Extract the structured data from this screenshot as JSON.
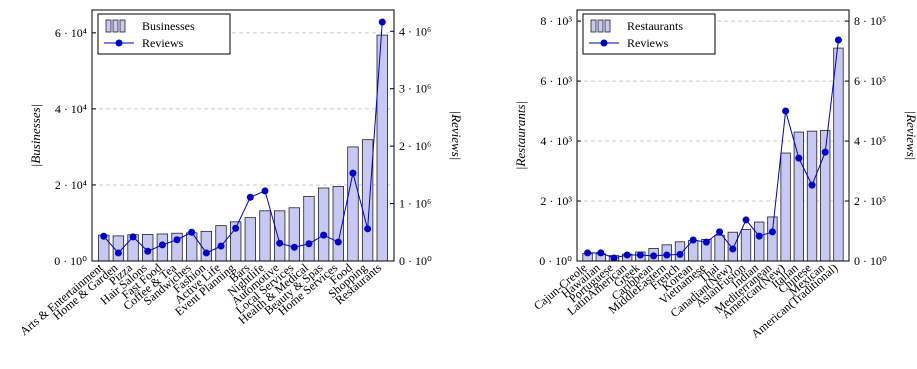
{
  "chart_data": [
    {
      "type": "bar-line",
      "y_label": "|Businesses|",
      "y2_label": "|Reviews|",
      "categories": [
        "Arts & Entertainment",
        "Home & Garden",
        "Pizza",
        "Hair Salons",
        "Fast Food",
        "Coffee & Tea",
        "Sandwiches",
        "Fashion",
        "Active Life",
        "Event Planning",
        "Bars",
        "Nightlife",
        "Automotive",
        "Local Services",
        "Health & Medical",
        "Beauty & Spas",
        "Home Services",
        "Food",
        "Shopping",
        "Restaurants"
      ],
      "series": [
        {
          "name": "Businesses",
          "color": "#c8c8f5",
          "values": [
            6800,
            6600,
            6900,
            7000,
            7100,
            7300,
            7400,
            7800,
            9300,
            10300,
            11400,
            13200,
            13200,
            14000,
            17000,
            19200,
            19600,
            30000,
            31900,
            59400
          ]
        },
        {
          "name": "Reviews",
          "color": "#0000cc",
          "axis": "y2",
          "values": [
            430000,
            140000,
            420000,
            170000,
            280000,
            370000,
            500000,
            140000,
            260000,
            570000,
            1110000,
            1220000,
            310000,
            240000,
            300000,
            450000,
            330000,
            1530000,
            560000,
            4160000
          ]
        }
      ],
      "ylim": [
        0,
        66000
      ],
      "yticks": [
        {
          "value": 0,
          "label": "0 · 10⁰"
        },
        {
          "value": 20000,
          "label": "2 · 10⁴"
        },
        {
          "value": 40000,
          "label": "4 · 10⁴"
        },
        {
          "value": 60000,
          "label": "6 · 10⁴"
        }
      ],
      "y2lim": [
        0,
        4370000
      ],
      "y2ticks": [
        {
          "value": 0,
          "label": "0 · 10⁰"
        },
        {
          "value": 1000000,
          "label": "1 · 10⁶"
        },
        {
          "value": 2000000,
          "label": "2 · 10⁶"
        },
        {
          "value": 3000000,
          "label": "3 · 10⁶"
        },
        {
          "value": 4000000,
          "label": "4 · 10⁶"
        }
      ],
      "grid": true,
      "legend": "upper-left"
    },
    {
      "type": "bar-line",
      "y_label": "|Restaurants|",
      "y2_label": "|Reviews|",
      "categories": [
        "Cajun-Creole",
        "Hawaiian",
        "Portuguese",
        "LatinAmerican",
        "Greek",
        "Caribbean",
        "MiddleEastern",
        "French",
        "Korean",
        "Vietnamese",
        "Thai",
        "Canadian(New)",
        "AsianFusion",
        "Indian",
        "Mediterranean",
        "American(New)",
        "Italian",
        "Chinese",
        "Mexican",
        "American(Traditional)"
      ],
      "series": [
        {
          "name": "Restaurants",
          "color": "#c8c8f5",
          "values": [
            250,
            240,
            180,
            230,
            300,
            420,
            540,
            640,
            680,
            720,
            860,
            960,
            1050,
            1300,
            1470,
            3600,
            4300,
            4330,
            4350,
            7100
          ]
        },
        {
          "name": "Reviews",
          "color": "#0000cc",
          "axis": "y2",
          "values": [
            27000,
            27000,
            10000,
            20000,
            20000,
            17000,
            20000,
            22000,
            70000,
            63000,
            97000,
            40000,
            137000,
            83000,
            97000,
            500000,
            343000,
            253000,
            363000,
            737000
          ]
        }
      ],
      "ylim": [
        0,
        8370
      ],
      "yticks": [
        {
          "value": 0,
          "label": "0 · 10⁰"
        },
        {
          "value": 2000,
          "label": "2 · 10³"
        },
        {
          "value": 4000,
          "label": "4 · 10³"
        },
        {
          "value": 6000,
          "label": "6 · 10³"
        },
        {
          "value": 8000,
          "label": "8 · 10³"
        }
      ],
      "y2lim": [
        0,
        837000
      ],
      "y2ticks": [
        {
          "value": 0,
          "label": "0 · 10⁰"
        },
        {
          "value": 200000,
          "label": "2 · 10⁵"
        },
        {
          "value": 400000,
          "label": "4 · 10⁵"
        },
        {
          "value": 600000,
          "label": "6 · 10⁵"
        },
        {
          "value": 800000,
          "label": "8 · 10⁵"
        }
      ],
      "grid": true,
      "legend": "upper-left"
    }
  ]
}
